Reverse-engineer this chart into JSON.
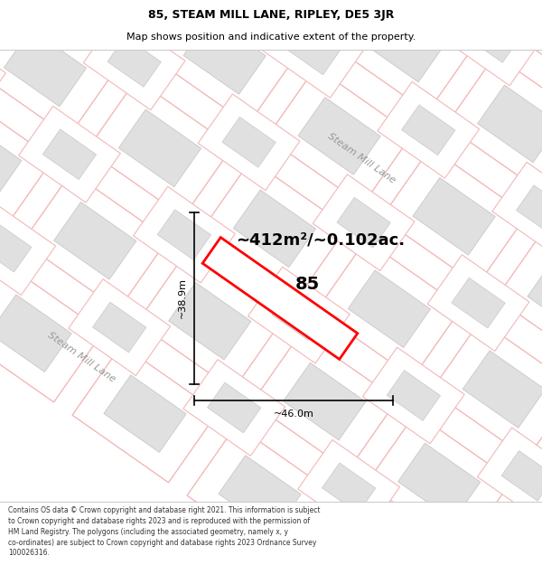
{
  "title": "85, STEAM MILL LANE, RIPLEY, DE5 3JR",
  "subtitle": "Map shows position and indicative extent of the property.",
  "footer_lines": [
    "Contains OS data © Crown copyright and database right 2021. This information is subject",
    "to Crown copyright and database rights 2023 and is reproduced with the permission of",
    "HM Land Registry. The polygons (including the associated geometry, namely x, y",
    "co-ordinates) are subject to Crown copyright and database rights 2023 Ordnance Survey",
    "100026316."
  ],
  "area_label": "~412m²/~0.102ac.",
  "plot_number": "85",
  "width_label": "~46.0m",
  "height_label": "~38.9m",
  "map_bg": "#f7f7f7",
  "road_color": "#f2b8b8",
  "block_fill": "#e0e0e0",
  "block_edge": "#c8c8c8",
  "highlight_color": "#ff0000",
  "street_label1": "Steam Mill Lane",
  "street_label2": "Steam Mill Lane",
  "title_fs": 9,
  "subtitle_fs": 8,
  "area_fs": 13,
  "plot_num_fs": 14,
  "measure_fs": 8,
  "street_fs": 8,
  "footer_fs": 5.5
}
